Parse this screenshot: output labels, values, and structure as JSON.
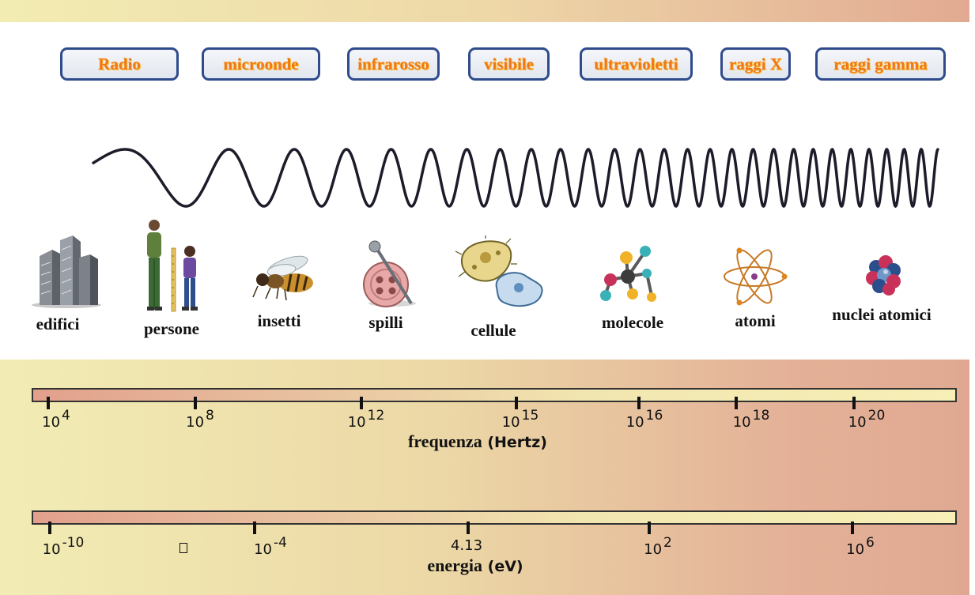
{
  "regions": [
    {
      "label": "Radio"
    },
    {
      "label": "microonde"
    },
    {
      "label": "infrarosso"
    },
    {
      "label": "visibile"
    },
    {
      "label": "ultravioletti"
    },
    {
      "label": "raggi X"
    },
    {
      "label": "raggi gamma"
    }
  ],
  "objects": [
    {
      "label": "edifici",
      "icon": "buildings-icon"
    },
    {
      "label": "persone",
      "icon": "people-icon"
    },
    {
      "label": "insetti",
      "icon": "bee-icon"
    },
    {
      "label": "spilli",
      "icon": "pin-button-icon"
    },
    {
      "label": "cellule",
      "icon": "cells-icon"
    },
    {
      "label": "molecole",
      "icon": "molecule-icon"
    },
    {
      "label": "atomi",
      "icon": "atom-icon"
    },
    {
      "label": "nuclei atomici",
      "icon": "nucleus-icon"
    }
  ],
  "frequency_scale": {
    "title_first": "frequenza",
    "title_rest": "(Hertz)",
    "ticks": [
      {
        "base": "10",
        "exp": "4"
      },
      {
        "base": "10",
        "exp": "8"
      },
      {
        "base": "10",
        "exp": "12"
      },
      {
        "base": "10",
        "exp": "15"
      },
      {
        "base": "10",
        "exp": "16"
      },
      {
        "base": "10",
        "exp": "18"
      },
      {
        "base": "10",
        "exp": "20"
      }
    ]
  },
  "energy_scale": {
    "title_first": "energia",
    "title_rest": "(eV)",
    "ticks": [
      {
        "base": "10",
        "exp": "-10"
      },
      {
        "base": "10",
        "exp": "-4"
      },
      {
        "base": "4.13",
        "exp": ""
      },
      {
        "base": "10",
        "exp": "2"
      },
      {
        "base": "10",
        "exp": "6"
      }
    ]
  },
  "colors": {
    "pill_border": "#2f4b8c",
    "region_text": "#f07818",
    "wave": "#1c1c2a"
  }
}
